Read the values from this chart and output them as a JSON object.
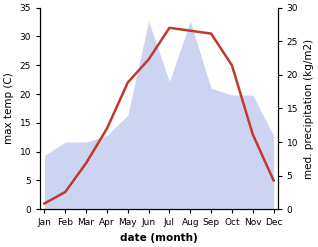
{
  "months": [
    "Jan",
    "Feb",
    "Mar",
    "Apr",
    "May",
    "Jun",
    "Jul",
    "Aug",
    "Sep",
    "Oct",
    "Nov",
    "Dec"
  ],
  "temperature": [
    1,
    3,
    8,
    14,
    22,
    26,
    31.5,
    31,
    30.5,
    25,
    13,
    5
  ],
  "precipitation": [
    8,
    10,
    10,
    11,
    14,
    28,
    19,
    28,
    18,
    17,
    17,
    11
  ],
  "temp_color": "#c0392b",
  "precip_fill_color": "#c5cdf0",
  "precip_fill_alpha": 0.85,
  "temp_lw": 1.8,
  "ylim_left": [
    0,
    35
  ],
  "ylim_right": [
    0,
    30
  ],
  "yticks_left": [
    0,
    5,
    10,
    15,
    20,
    25,
    30,
    35
  ],
  "yticks_right": [
    0,
    5,
    10,
    15,
    20,
    25,
    30
  ],
  "ylabel_left": "max temp (C)",
  "ylabel_right": "med. precipitation (kg/m2)",
  "xlabel": "date (month)",
  "bg_color": "#ffffff",
  "label_fontsize": 7.5,
  "tick_fontsize": 6.5
}
